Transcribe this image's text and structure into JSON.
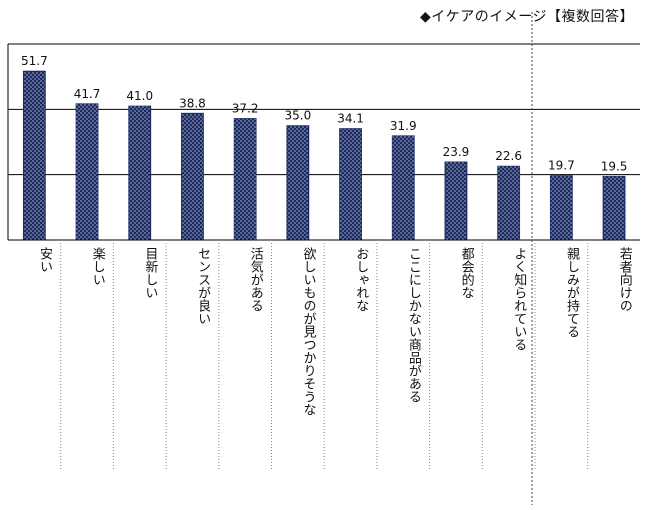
{
  "chart_data": {
    "type": "bar",
    "title": "◆イケアのイメージ【複数回答】",
    "categories": [
      "安い",
      "楽しい",
      "目新しい",
      "センスが良い",
      "活気がある",
      "欲しいものが見つかりそうな",
      "おしゃれな",
      "ここにしかない商品がある",
      "都会的な",
      "よく知られている",
      "親しみが持てる",
      "若者向けの"
    ],
    "values": [
      51.7,
      41.7,
      41.0,
      38.8,
      37.2,
      35.0,
      34.1,
      31.9,
      23.9,
      22.6,
      19.7,
      19.5
    ],
    "ylim": [
      0,
      60
    ],
    "gridlines": [
      20,
      40,
      60
    ],
    "bar_color": "#1b2a63",
    "xlabel": "",
    "ylabel": ""
  }
}
